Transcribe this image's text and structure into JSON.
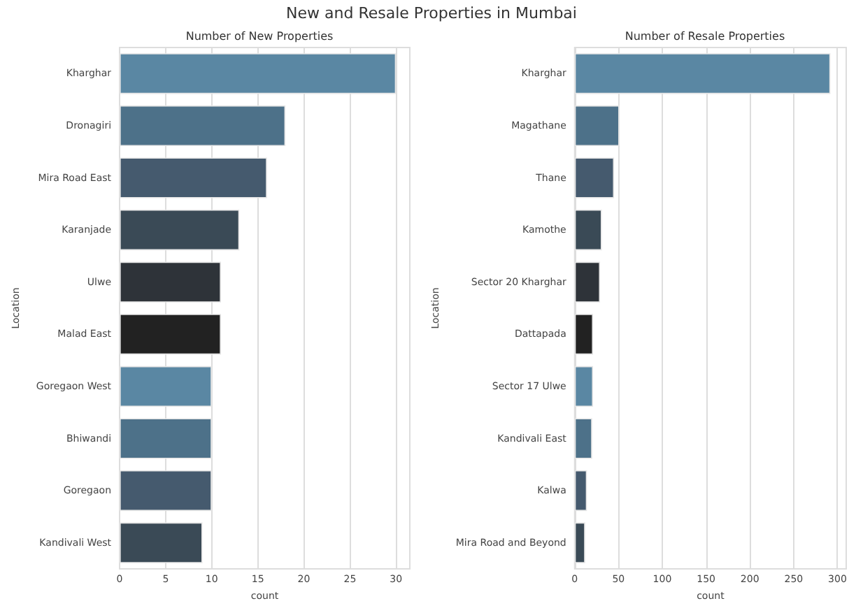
{
  "chart_data": [
    {
      "type": "bar",
      "orientation": "horizontal",
      "title": "New and Resale Properties in Mumbai",
      "subtitle": "Number of New Properties",
      "xlabel": "count",
      "ylabel": "Location",
      "categories": [
        "Kharghar",
        "Dronagiri",
        "Mira Road East",
        "Karanjade",
        "Ulwe",
        "Malad East",
        "Goregaon West",
        "Bhiwandi",
        "Goregaon",
        "Kandivali West"
      ],
      "values": [
        30,
        18,
        16,
        13,
        11,
        11,
        10,
        10,
        10,
        9
      ],
      "colors": [
        "#5a87a3",
        "#4d7189",
        "#455a6e",
        "#3a4a56",
        "#2e3339",
        "#222222",
        "#5a87a3",
        "#4d7189",
        "#455a6e",
        "#3a4a56"
      ],
      "xlim": [
        0,
        31.5
      ],
      "xticks": [
        0,
        5,
        10,
        15,
        20,
        25,
        30
      ],
      "grid": "x"
    },
    {
      "type": "bar",
      "orientation": "horizontal",
      "title": "Number of Resale Properties",
      "xlabel": "count",
      "ylabel": "Location",
      "categories": [
        "Kharghar",
        "Magathane",
        "Thane",
        "Kamothe",
        "Sector 20 Kharghar",
        "Dattapada",
        "Sector 17 Ulwe",
        "Kandivali East",
        "Kalwa",
        "Mira Road and Beyond"
      ],
      "values": [
        292,
        51,
        45,
        31,
        29,
        21,
        21,
        20,
        14,
        12
      ],
      "colors": [
        "#5a87a3",
        "#4d7189",
        "#455a6e",
        "#3a4a56",
        "#2e3339",
        "#222222",
        "#5a87a3",
        "#4d7189",
        "#455a6e",
        "#3a4a56"
      ],
      "xlim": [
        0,
        310
      ],
      "xticks": [
        0,
        50,
        100,
        150,
        200,
        250,
        300
      ],
      "grid": "x"
    }
  ]
}
